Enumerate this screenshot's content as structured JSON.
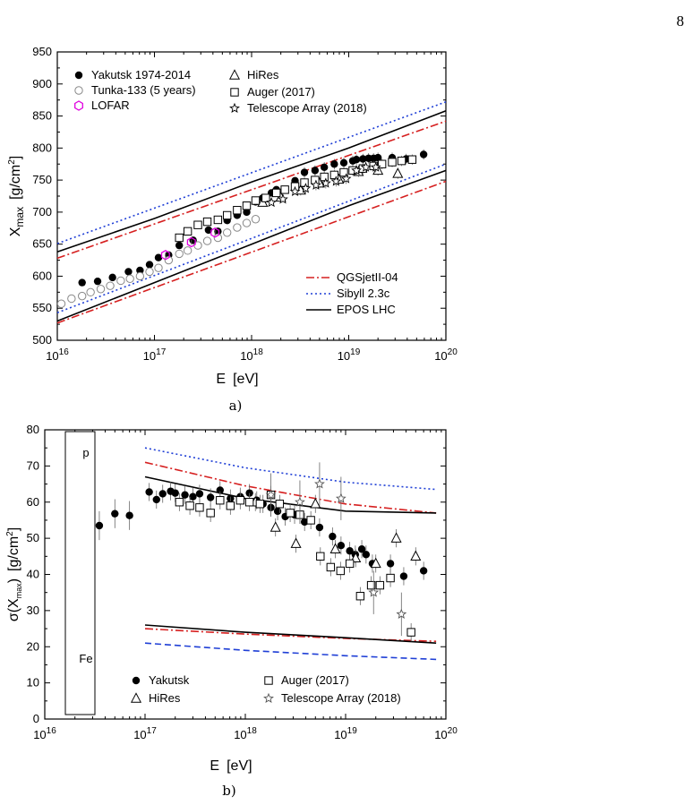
{
  "page_number": "8",
  "chart_data": [
    {
      "type": "scatter",
      "panel_label": "a)",
      "xlabel": "E  [eV]",
      "ylabel": "X_max  [g/cm^2]",
      "xscale": "log",
      "xlim": [
        1e+16,
        1e+20
      ],
      "ylim": [
        500,
        950
      ],
      "x_ticks": [
        "10^16",
        "10^17",
        "10^18",
        "10^19",
        "10^20"
      ],
      "y_ticks": [
        "500",
        "550",
        "600",
        "650",
        "700",
        "750",
        "800",
        "850",
        "900",
        "950"
      ],
      "legend_placement": "top-left",
      "lines_legend_placement": "bottom-right",
      "series": [
        {
          "name": "Yakutsk 1974-2014",
          "marker": "filled-circle",
          "color": "#000000",
          "x": [
            1.8e+16,
            2.6e+16,
            3.7e+16,
            5.4e+16,
            7.1e+16,
            8.9e+16,
            1.1e+17,
            1.4e+17,
            1.8e+17,
            2.5e+17,
            3.6e+17,
            4.5e+17,
            5.6e+17,
            7.1e+17,
            8.9e+17,
            1.1e+18,
            1.3e+18,
            1.6e+18,
            1.8e+18,
            2.8e+18,
            3.5e+18,
            4.5e+18,
            5.6e+18,
            7.1e+18,
            8.9e+18,
            1.1e+19,
            1.2e+19,
            1.4e+19,
            1.6e+19,
            1.8e+19,
            2e+19,
            2.8e+19,
            3.9e+19,
            5.9e+19
          ],
          "y": [
            590,
            592,
            598,
            607,
            609,
            618,
            629,
            633,
            648,
            656,
            672,
            670,
            687,
            695,
            700,
            716,
            722,
            730,
            735,
            749,
            762,
            765,
            770,
            775,
            777,
            780,
            782,
            783,
            784,
            784,
            785,
            785,
            783,
            790
          ]
        },
        {
          "name": "Tunka-133 (5 years)",
          "marker": "open-circle",
          "color": "#888888",
          "x": [
            1.1e+16,
            1.4e+16,
            1.8e+16,
            2.2e+16,
            2.8e+16,
            3.5e+16,
            4.5e+16,
            5.6e+16,
            7.1e+16,
            8.9e+16,
            1.1e+17,
            1.4e+17,
            1.8e+17,
            2.2e+17,
            2.8e+17,
            3.5e+17,
            4.5e+17,
            5.6e+17,
            7.1e+17,
            8.9e+17,
            1.1e+18
          ],
          "y": [
            557,
            565,
            569,
            575,
            580,
            585,
            593,
            596,
            600,
            607,
            613,
            625,
            635,
            640,
            648,
            655,
            660,
            668,
            676,
            683,
            689
          ]
        },
        {
          "name": "LOFAR",
          "marker": "open-hexagon",
          "color": "#e000e0",
          "x": [
            1.3e+17,
            2.4e+17,
            4.2e+17
          ],
          "y": [
            633,
            653,
            668
          ]
        },
        {
          "name": "HiRes",
          "marker": "open-triangle",
          "color": "#000000",
          "x": [
            1.3e+18,
            2e+18,
            3.2e+18,
            5e+18,
            7.9e+18,
            1.26e+19,
            2e+19,
            3.2e+19
          ],
          "y": [
            715,
            723,
            734,
            745,
            751,
            763,
            765,
            760
          ]
        },
        {
          "name": "Auger (2017)",
          "marker": "open-square",
          "color": "#000000",
          "x": [
            1.8e+17,
            2.2e+17,
            2.8e+17,
            3.5e+17,
            4.5e+17,
            5.6e+17,
            7.1e+17,
            8.9e+17,
            1.1e+18,
            1.4e+18,
            1.8e+18,
            2.2e+18,
            2.8e+18,
            3.5e+18,
            4.5e+18,
            5.6e+18,
            7.1e+18,
            8.9e+18,
            1.1e+19,
            1.4e+19,
            1.8e+19,
            2.2e+19,
            2.8e+19,
            3.5e+19,
            4.5e+19
          ],
          "y": [
            660,
            670,
            680,
            685,
            688,
            695,
            703,
            710,
            718,
            722,
            730,
            735,
            740,
            746,
            750,
            755,
            758,
            762,
            765,
            768,
            772,
            775,
            778,
            780,
            782
          ]
        },
        {
          "name": "Telescope Array (2018)",
          "marker": "open-star",
          "color": "#000000",
          "x": [
            1.6e+18,
            2.1e+18,
            2.8e+18,
            3.6e+18,
            4.6e+18,
            5.8e+18,
            7.4e+18,
            9.4e+18,
            1.2e+19,
            1.5e+19,
            1.9e+19
          ],
          "y": [
            715,
            720,
            732,
            737,
            742,
            745,
            748,
            752,
            765,
            770,
            770
          ]
        }
      ],
      "lines": [
        {
          "name": "QGSjetII-04",
          "style": "dash-dot",
          "color": "#d62020",
          "upper": {
            "x": [
              1e+16,
              1e+20
            ],
            "y": [
              628,
              842
            ]
          },
          "lower": {
            "x": [
              1e+16,
              1e+20
            ],
            "y": [
              527,
              748
            ]
          }
        },
        {
          "name": "Sibyll 2.3c",
          "style": "dotted",
          "color": "#1f3fd6",
          "upper": {
            "x": [
              1e+16,
              1e+20
            ],
            "y": [
              651,
              872
            ]
          },
          "lower": {
            "x": [
              1e+16,
              1e+20
            ],
            "y": [
              543,
              775
            ]
          }
        },
        {
          "name": "EPOS LHC",
          "style": "solid",
          "color": "#000000",
          "upper": {
            "x": [
              1e+16,
              1e+17,
              1e+18,
              1e+19,
              1e+20
            ],
            "y": [
              638,
              690,
              747,
              800,
              858
            ]
          },
          "lower": {
            "x": [
              1e+16,
              1e+17,
              1e+18,
              1e+19,
              1e+20
            ],
            "y": [
              530,
              590,
              650,
              710,
              765
            ]
          }
        }
      ]
    },
    {
      "type": "scatter",
      "panel_label": "b)",
      "xlabel": "E  [eV]",
      "ylabel": "σ(X_max)  [g/cm^2]",
      "xscale": "log",
      "xlim": [
        1e+16,
        1e+20
      ],
      "ylim": [
        0,
        80
      ],
      "x_ticks": [
        "10^16",
        "10^17",
        "10^18",
        "10^19",
        "10^20"
      ],
      "y_ticks": [
        "0",
        "10",
        "20",
        "30",
        "40",
        "50",
        "60",
        "70",
        "80"
      ],
      "box_labels": {
        "top": "p",
        "bottom": "Fe"
      },
      "legend_placement": "bottom",
      "series": [
        {
          "name": "Yakutsk",
          "marker": "filled-circle",
          "color": "#000000",
          "x": [
            3.5e+16,
            5e+16,
            7e+16,
            1.1e+17,
            1.3e+17,
            1.5e+17,
            1.8e+17,
            2e+17,
            2.5e+17,
            3e+17,
            3.5e+17,
            4.5e+17,
            5.6e+17,
            7.1e+17,
            8.9e+17,
            1.1e+18,
            1.3e+18,
            1.5e+18,
            1.8e+18,
            2.1e+18,
            2.5e+18,
            3.1e+18,
            3.9e+18,
            5.5e+18,
            7.4e+18,
            9e+18,
            1.1e+19,
            1.25e+19,
            1.45e+19,
            1.6e+19,
            1.85e+19,
            2.8e+19,
            3.8e+19,
            6e+19
          ],
          "y": [
            53.5,
            56.8,
            56.3,
            62.8,
            60.7,
            62.3,
            63,
            62.5,
            62,
            61.5,
            62.3,
            61.3,
            63.3,
            61,
            61.5,
            62.5,
            60.5,
            59.5,
            58.5,
            57.5,
            56,
            56.5,
            54.5,
            53,
            50.5,
            48,
            46.5,
            45.5,
            47,
            45.5,
            43,
            43,
            39.5,
            41
          ]
        },
        {
          "name": "HiRes",
          "marker": "open-triangle",
          "color": "#000000",
          "x": [
            1.26e+18,
            2e+18,
            3.2e+18,
            5e+18,
            7.9e+18,
            1.26e+19,
            2e+19,
            3.2e+19,
            5e+19
          ],
          "y": [
            60,
            53,
            48.5,
            59.5,
            47,
            44.5,
            43,
            50,
            45
          ]
        },
        {
          "name": "Auger (2017)",
          "marker": "open-square",
          "color": "#000000",
          "x": [
            2.2e+17,
            2.8e+17,
            3.5e+17,
            4.5e+17,
            5.6e+17,
            7.1e+17,
            8.9e+17,
            1.1e+18,
            1.4e+18,
            1.8e+18,
            2.2e+18,
            2.8e+18,
            3.5e+18,
            4.5e+18,
            5.6e+18,
            7.1e+18,
            8.9e+18,
            1.1e+19,
            1.4e+19,
            1.8e+19,
            2.2e+19,
            2.8e+19,
            4.5e+19
          ],
          "y": [
            60,
            59,
            58.5,
            57,
            60.5,
            59,
            60.5,
            60,
            59.5,
            62,
            59.5,
            57,
            56.5,
            55,
            45,
            42,
            41,
            43,
            34,
            37,
            37,
            39,
            24
          ]
        },
        {
          "name": "Telescope Array (2018)",
          "marker": "open-star",
          "color": "#555555",
          "x": [
            1.8e+18,
            3.5e+18,
            5.5e+18,
            9e+18,
            1.9e+19,
            3.6e+19
          ],
          "y": [
            62,
            60,
            65,
            61,
            35,
            29
          ]
        }
      ],
      "lines": [
        {
          "name": "QGSjetII-04",
          "style": "dash-dot",
          "color": "#d62020",
          "upper": {
            "x": [
              1e+17,
              1e+18,
              1e+19,
              8e+19
            ],
            "y": [
              71,
              64.5,
              59.5,
              57
            ]
          },
          "lower": {
            "x": [
              1e+17,
              1e+18,
              1e+19,
              8e+19
            ],
            "y": [
              25,
              23.5,
              22.3,
              21.5
            ]
          }
        },
        {
          "name": "Sibyll 2.3c",
          "style": "dotted",
          "color": "#1f3fd6",
          "upper": {
            "x": [
              1e+17,
              1e+18,
              1e+19,
              8e+19
            ],
            "y": [
              75,
              69.5,
              65.5,
              63.5
            ]
          }
        },
        {
          "name": "Sibyll 2.3c (Fe)",
          "style": "dashed",
          "color": "#1f3fd6",
          "lower": {
            "x": [
              1e+17,
              1e+18,
              1e+19,
              8e+19
            ],
            "y": [
              21,
              19,
              17.5,
              16.5
            ]
          }
        },
        {
          "name": "EPOS LHC",
          "style": "solid",
          "color": "#000000",
          "upper": {
            "x": [
              1e+17,
              1e+18,
              1e+19,
              8e+19
            ],
            "y": [
              67,
              61,
              57.5,
              57
            ]
          },
          "lower": {
            "x": [
              1e+17,
              1e+18,
              1e+19,
              8e+19
            ],
            "y": [
              26,
              24,
              22.5,
              21
            ]
          }
        }
      ]
    }
  ],
  "legend_a_points": [
    {
      "label": "Yakutsk 1974-2014"
    },
    {
      "label": "Tunka-133 (5 years)"
    },
    {
      "label": "LOFAR"
    },
    {
      "label": "HiRes"
    },
    {
      "label": "Auger (2017)"
    },
    {
      "label": "Telescope Array (2018)"
    }
  ],
  "legend_a_lines": [
    {
      "label": "QGSjetII-04"
    },
    {
      "label": "Sibyll 2.3c"
    },
    {
      "label": "EPOS LHC"
    }
  ],
  "legend_b_points": [
    {
      "label": "Yakutsk"
    },
    {
      "label": "HiRes"
    },
    {
      "label": "Auger (2017)"
    },
    {
      "label": "Telescope Array (2018)"
    }
  ]
}
